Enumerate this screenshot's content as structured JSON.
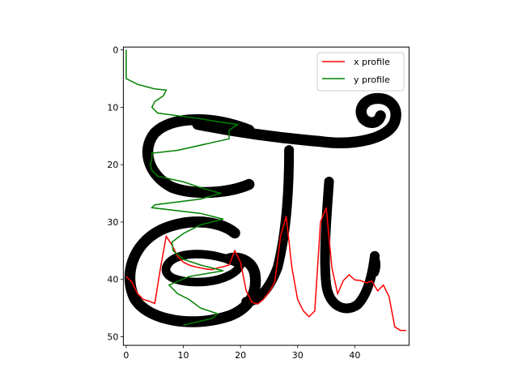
{
  "chart_data": {
    "type": "line",
    "background": "image",
    "image_description_colors": {
      "ink": "#000000",
      "paper": "#ffffff"
    },
    "xlim": [
      -0.5,
      49.5
    ],
    "ylim": [
      51.5,
      -0.5
    ],
    "x_ticks": [
      0,
      10,
      20,
      30,
      40
    ],
    "y_ticks": [
      0,
      10,
      20,
      30,
      40,
      50
    ],
    "legend_position": "top-right",
    "series": [
      {
        "name": "x profile",
        "color": "#ff0000",
        "points": [
          [
            0,
            39.5
          ],
          [
            1,
            40.5
          ],
          [
            2,
            42.5
          ],
          [
            3,
            43.5
          ],
          [
            4,
            43.8
          ],
          [
            5,
            44.2
          ],
          [
            6,
            38
          ],
          [
            7,
            32.5
          ],
          [
            8,
            34
          ],
          [
            9,
            36
          ],
          [
            10,
            37
          ],
          [
            11,
            37.5
          ],
          [
            12,
            37.8
          ],
          [
            13,
            38
          ],
          [
            14,
            38.2
          ],
          [
            15,
            38.3
          ],
          [
            16,
            38
          ],
          [
            17,
            37.8
          ],
          [
            18,
            37.5
          ],
          [
            19,
            35
          ],
          [
            20,
            37
          ],
          [
            21,
            42
          ],
          [
            22,
            44
          ],
          [
            23,
            44.3
          ],
          [
            24,
            43.5
          ],
          [
            25,
            42.2
          ],
          [
            26,
            40.5
          ],
          [
            27,
            32.5
          ],
          [
            28,
            29
          ],
          [
            29,
            38
          ],
          [
            30,
            43.5
          ],
          [
            31,
            45.5
          ],
          [
            32,
            46.5
          ],
          [
            33,
            45.5
          ],
          [
            34,
            30
          ],
          [
            35,
            27.5
          ],
          [
            36,
            38
          ],
          [
            37,
            42.5
          ],
          [
            38,
            40.2
          ],
          [
            39,
            39.2
          ],
          [
            40,
            40.1
          ],
          [
            41,
            40.2
          ],
          [
            42,
            40.6
          ],
          [
            43,
            40.3
          ],
          [
            44,
            42
          ],
          [
            45,
            41
          ],
          [
            46,
            43
          ],
          [
            47,
            48.3
          ],
          [
            48,
            48.9
          ],
          [
            49,
            48.9
          ]
        ]
      },
      {
        "name": "y profile",
        "color": "#008000",
        "points": [
          [
            0,
            0
          ],
          [
            0,
            5
          ],
          [
            2,
            6
          ],
          [
            5,
            6.8
          ],
          [
            7,
            7
          ],
          [
            6.5,
            8
          ],
          [
            5,
            9
          ],
          [
            4.5,
            10
          ],
          [
            5.5,
            11
          ],
          [
            13,
            12
          ],
          [
            16,
            12.5
          ],
          [
            19.5,
            13
          ],
          [
            18,
            14
          ],
          [
            18,
            15.5
          ],
          [
            9,
            17.5
          ],
          [
            4.5,
            18
          ],
          [
            4.5,
            19
          ],
          [
            4.2,
            20
          ],
          [
            4.5,
            21
          ],
          [
            5.5,
            22
          ],
          [
            10,
            23
          ],
          [
            13,
            24
          ],
          [
            16.5,
            25
          ],
          [
            13,
            26
          ],
          [
            5,
            27
          ],
          [
            4.5,
            27.5
          ],
          [
            13,
            28.5
          ],
          [
            17,
            29.5
          ],
          [
            13,
            30.5
          ],
          [
            10,
            32
          ],
          [
            8,
            33.5
          ],
          [
            8.2,
            35
          ],
          [
            10,
            36.5
          ],
          [
            13,
            37.5
          ],
          [
            17,
            38.5
          ],
          [
            11,
            39.5
          ],
          [
            7.5,
            41
          ],
          [
            9,
            42.5
          ],
          [
            11,
            43.5
          ],
          [
            13,
            45
          ],
          [
            16,
            46
          ],
          [
            15,
            46.8
          ],
          [
            10,
            48
          ]
        ]
      }
    ]
  }
}
